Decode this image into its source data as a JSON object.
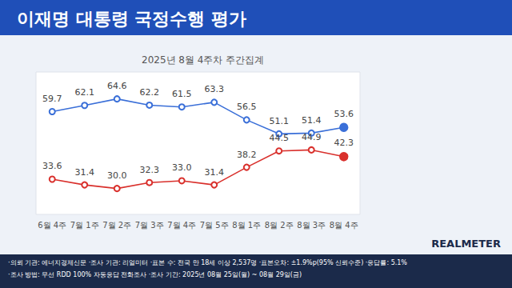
{
  "chart_data": {
    "type": "line",
    "title": "이재명 대통령 국정수행 평가",
    "subtitle": "2025년 8월 4주차 주간집계",
    "categories": [
      "6월 4주",
      "7월 1주",
      "7월 2주",
      "7월 3주",
      "7월 4주",
      "7월 5주",
      "8월 1주",
      "8월 2주",
      "8월 3주",
      "8월 4주"
    ],
    "series": [
      {
        "color": "#3a6fd8",
        "values": [
          59.7,
          62.1,
          64.6,
          62.2,
          61.5,
          63.3,
          56.5,
          51.1,
          51.4,
          53.6
        ]
      },
      {
        "color": "#d9302c",
        "values": [
          33.6,
          31.4,
          30.0,
          32.3,
          33.0,
          31.4,
          38.2,
          44.5,
          44.9,
          42.3
        ],
        "value_labels": [
          "33.6",
          "31.4",
          "30.0",
          "32.3",
          "33.0",
          "31.4",
          "38.2",
          "44.5",
          "44.9",
          "42.3"
        ]
      }
    ],
    "ylim": [
      20,
      75
    ],
    "yticks": [],
    "grid": false,
    "tick_labels": "x",
    "data_labels": true,
    "marker": "circle",
    "footnotes": [
      "·의뢰 기관: 에너지경제신문 ·조사 기관: 리얼미터 ·표본 수: 전국 만 18세 이상 2,537명 ·표본오차: ±1.9%p(95% 신뢰수준) ·응답률: 5.1%",
      "·조사 방법: 무선 RDD 100% 자동응답 전화조사 ·조사 기간: 2025년 08월 25일(월) ~ 08월 29일(금)"
    ],
    "source": "REALMETER"
  }
}
